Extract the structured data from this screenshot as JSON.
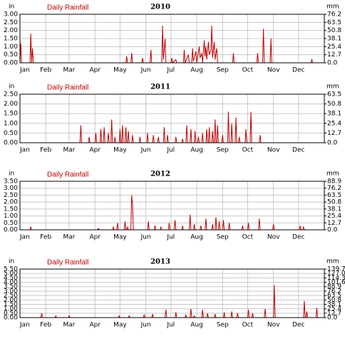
{
  "chart_data": [
    {
      "type": "line",
      "title": "2010",
      "ylabel": "in",
      "y2label": "mm",
      "grid": true,
      "x": [
        1,
        2,
        3,
        13,
        14,
        15,
        16,
        17,
        128,
        129,
        130,
        134,
        135,
        136,
        147,
        148,
        149,
        157,
        158,
        159,
        171,
        172,
        173,
        175,
        176,
        182,
        183,
        184,
        188,
        189,
        197,
        198,
        199,
        203,
        204,
        207,
        208,
        209,
        212,
        213,
        216,
        217,
        219,
        220,
        222,
        223,
        224,
        225,
        227,
        228,
        230,
        231,
        232,
        234,
        235,
        237,
        238,
        256,
        257,
        258,
        285,
        286,
        287,
        292,
        293,
        294,
        301,
        302,
        303,
        350,
        351,
        352,
        365
      ],
      "series": [
        {
          "name": "Daily Rainfall",
          "color": "#c00000",
          "values": [
            0,
            1.2,
            0,
            0,
            1.8,
            0,
            0.9,
            0,
            0,
            0.4,
            0,
            0,
            0.6,
            0,
            0,
            0.3,
            0,
            0,
            0.8,
            0,
            0,
            2.3,
            0.2,
            1.5,
            0,
            0,
            0.3,
            0,
            0.2,
            0,
            0,
            0.8,
            0,
            0.5,
            0,
            0,
            0.9,
            0.1,
            0.7,
            0,
            1.0,
            0.3,
            0.6,
            0,
            1.4,
            0.4,
            1.0,
            0.2,
            1.3,
            0.5,
            0.8,
            2.3,
            0.3,
            1.3,
            0.2,
            0.9,
            0,
            0,
            0.6,
            0,
            0,
            0.6,
            0,
            0,
            2.1,
            0,
            0,
            1.5,
            0,
            0,
            0.2,
            0,
            0
          ]
        }
      ],
      "xlim": [
        1,
        366
      ],
      "xticks": [
        {
          "value": 1,
          "label": "Jan"
        },
        {
          "value": 32,
          "label": "Feb"
        },
        {
          "value": 60,
          "label": "Mar"
        },
        {
          "value": 91,
          "label": "Apr"
        },
        {
          "value": 121,
          "label": "May"
        },
        {
          "value": 152,
          "label": "Jun"
        },
        {
          "value": 182,
          "label": "Jul"
        },
        {
          "value": 213,
          "label": "Aug"
        },
        {
          "value": 244,
          "label": "Sep"
        },
        {
          "value": 274,
          "label": "Oct"
        },
        {
          "value": 305,
          "label": "Nov"
        },
        {
          "value": 335,
          "label": "Dec"
        }
      ],
      "ylim": [
        0,
        3
      ],
      "yticks": [
        {
          "value": 0,
          "label": "0.00"
        },
        {
          "value": 0.5,
          "label": "0.50"
        },
        {
          "value": 1,
          "label": "1.00"
        },
        {
          "value": 1.5,
          "label": "1.50"
        },
        {
          "value": 2,
          "label": "2.00"
        },
        {
          "value": 2.5,
          "label": "2.50"
        },
        {
          "value": 3,
          "label": "3.00"
        }
      ],
      "y2lim": [
        0,
        76.2
      ],
      "y2ticks": [
        {
          "value": 0,
          "label": "0.0"
        },
        12.7,
        25.4,
        38.1,
        50.8,
        63.5,
        76.2
      ]
    },
    {
      "type": "line",
      "title": "2011",
      "ylabel": "in",
      "y2label": "mm",
      "grid": true,
      "x": [
        1,
        73,
        74,
        75,
        83,
        84,
        85,
        91,
        92,
        93,
        97,
        98,
        99,
        101,
        102,
        103,
        106,
        107,
        108,
        110,
        111,
        112,
        114,
        115,
        116,
        120,
        121,
        122,
        123,
        124,
        125,
        127,
        128,
        129,
        130,
        131,
        132,
        135,
        136,
        137,
        144,
        145,
        146,
        153,
        154,
        155,
        160,
        161,
        162,
        166,
        167,
        168,
        173,
        174,
        175,
        177,
        178,
        179,
        187,
        188,
        189,
        195,
        196,
        197,
        200,
        201,
        202,
        205,
        206,
        207,
        210,
        211,
        212,
        214,
        215,
        216,
        219,
        220,
        221,
        224,
        225,
        226,
        227,
        228,
        229,
        231,
        232,
        233,
        234,
        235,
        236,
        237,
        238,
        239,
        243,
        244,
        245,
        250,
        251,
        252,
        254,
        255,
        256,
        259,
        260,
        261,
        263,
        264,
        265,
        271,
        272,
        273,
        277,
        278,
        279,
        288,
        289,
        290,
        365
      ],
      "series": [
        {
          "name": "Daily Rainfall",
          "color": "#c00000",
          "values": [
            0,
            0,
            0.9,
            0,
            0,
            0.3,
            0,
            0,
            0.5,
            0,
            0,
            0.7,
            0,
            0,
            0.8,
            0,
            0,
            0.5,
            0,
            0,
            1.2,
            0,
            0,
            0.3,
            0,
            0,
            0.7,
            0,
            0,
            0.9,
            0,
            0,
            0.8,
            0,
            0,
            0.6,
            0,
            0,
            0.4,
            0,
            0,
            0.3,
            0,
            0,
            0.5,
            0,
            0,
            0.4,
            0,
            0,
            0.3,
            0,
            0,
            0.8,
            0,
            0,
            0.4,
            0,
            0,
            0.3,
            0,
            0,
            0.2,
            0,
            0,
            0.9,
            0,
            0,
            0.7,
            0,
            0,
            0.6,
            0,
            0,
            0.3,
            0,
            0,
            0.5,
            0,
            0,
            0.7,
            0,
            0,
            0.8,
            0,
            0,
            0.6,
            0,
            0,
            1.2,
            0,
            0,
            0.9,
            0,
            0,
            0.4,
            0,
            0,
            1.6,
            0,
            0,
            1.0,
            0,
            0,
            1.3,
            0,
            0,
            0.3,
            0,
            0,
            0.7,
            0,
            0,
            1.6,
            0,
            0,
            0.4,
            0,
            0
          ]
        }
      ],
      "xlim": [
        1,
        366
      ],
      "xticks": [
        {
          "value": 1,
          "label": "Jan"
        },
        {
          "value": 32,
          "label": "Feb"
        },
        {
          "value": 60,
          "label": "Mar"
        },
        {
          "value": 91,
          "label": "Apr"
        },
        {
          "value": 121,
          "label": "May"
        },
        {
          "value": 152,
          "label": "Jun"
        },
        {
          "value": 182,
          "label": "Jul"
        },
        {
          "value": 213,
          "label": "Aug"
        },
        {
          "value": 244,
          "label": "Sep"
        },
        {
          "value": 274,
          "label": "Oct"
        },
        {
          "value": 305,
          "label": "Nov"
        },
        {
          "value": 335,
          "label": "Dec"
        }
      ],
      "ylim": [
        0,
        2.5
      ],
      "yticks": [
        {
          "value": 0,
          "label": "0.00"
        },
        {
          "value": 0.5,
          "label": "0.50"
        },
        {
          "value": 1,
          "label": "1.00"
        },
        {
          "value": 1.5,
          "label": "1.50"
        },
        {
          "value": 2,
          "label": "2.00"
        },
        {
          "value": 2.5,
          "label": "2.50"
        }
      ],
      "y2lim": [
        0,
        63.5
      ],
      "y2ticks": [
        {
          "value": 0,
          "label": "0.0"
        },
        12.7,
        25.4,
        38.1,
        50.8,
        63.5
      ]
    },
    {
      "type": "line",
      "title": "2012",
      "ylabel": "in",
      "y2label": "mm",
      "grid": true,
      "x": [
        1,
        13,
        14,
        15,
        94,
        95,
        96,
        112,
        113,
        114,
        117,
        118,
        119,
        126,
        127,
        128,
        129,
        130,
        131,
        134,
        135,
        136,
        137,
        154,
        155,
        156,
        162,
        163,
        164,
        169,
        170,
        171,
        179,
        180,
        181,
        186,
        187,
        188,
        195,
        196,
        197,
        204,
        205,
        206,
        209,
        210,
        211,
        217,
        218,
        219,
        223,
        224,
        225,
        231,
        232,
        233,
        235,
        236,
        237,
        239,
        240,
        241,
        244,
        245,
        246,
        251,
        252,
        253,
        267,
        268,
        269,
        274,
        275,
        276,
        287,
        288,
        289,
        304,
        305,
        306,
        336,
        337,
        338,
        340,
        341,
        342,
        365
      ],
      "series": [
        {
          "name": "Daily Rainfall",
          "color": "#c00000",
          "values": [
            0,
            0,
            0.2,
            0,
            0,
            0.1,
            0,
            0,
            0.2,
            0,
            0,
            0.5,
            0,
            0,
            0.6,
            0,
            0,
            0.2,
            0,
            0,
            2.5,
            1.8,
            0,
            0,
            0.6,
            0,
            0,
            0.3,
            0,
            0,
            0.2,
            0,
            0,
            0.5,
            0,
            0,
            0.7,
            0,
            0,
            0.3,
            0,
            0,
            1.1,
            0,
            0,
            0.4,
            0,
            0,
            0.3,
            0,
            0,
            0.8,
            0,
            0,
            0.4,
            0,
            0,
            0.9,
            0,
            0,
            0.6,
            0,
            0,
            0.7,
            0,
            0,
            0.5,
            0,
            0,
            0.3,
            0,
            0,
            0.5,
            0,
            0,
            0.8,
            0,
            0,
            0.4,
            0,
            0,
            0.3,
            0,
            0,
            0.2,
            0,
            0
          ]
        }
      ],
      "xlim": [
        1,
        366
      ],
      "xticks": [
        {
          "value": 1,
          "label": "Jan"
        },
        {
          "value": 32,
          "label": "Feb"
        },
        {
          "value": 60,
          "label": "Mar"
        },
        {
          "value": 91,
          "label": "Apr"
        },
        {
          "value": 121,
          "label": "May"
        },
        {
          "value": 152,
          "label": "Jun"
        },
        {
          "value": 182,
          "label": "Jul"
        },
        {
          "value": 213,
          "label": "Aug"
        },
        {
          "value": 244,
          "label": "Sep"
        },
        {
          "value": 274,
          "label": "Oct"
        },
        {
          "value": 305,
          "label": "Nov"
        },
        {
          "value": 335,
          "label": "Dec"
        }
      ],
      "ylim": [
        0,
        3.5
      ],
      "yticks": [
        {
          "value": 0,
          "label": "0.00"
        },
        {
          "value": 0.5,
          "label": "0.50"
        },
        {
          "value": 1,
          "label": "1.00"
        },
        {
          "value": 1.5,
          "label": "1.50"
        },
        {
          "value": 2,
          "label": "2.00"
        },
        {
          "value": 2.5,
          "label": "2.50"
        },
        {
          "value": 3,
          "label": "3.00"
        },
        {
          "value": 3.5,
          "label": "3.50"
        }
      ],
      "y2lim": [
        0,
        88.9
      ],
      "y2ticks": [
        {
          "value": 0,
          "label": "0.0"
        },
        12.7,
        25.4,
        38.1,
        50.8,
        63.5,
        76.2,
        88.9
      ]
    },
    {
      "type": "line",
      "title": "2013",
      "ylabel": "in",
      "y2label": "mm",
      "grid": true,
      "x": [
        1,
        26,
        27,
        28,
        43,
        44,
        45,
        59,
        60,
        61,
        119,
        120,
        121,
        131,
        132,
        133,
        149,
        150,
        151,
        159,
        160,
        161,
        175,
        176,
        177,
        187,
        188,
        189,
        199,
        200,
        201,
        205,
        206,
        207,
        209,
        210,
        211,
        219,
        220,
        221,
        225,
        226,
        227,
        234,
        235,
        236,
        245,
        246,
        247,
        254,
        255,
        256,
        261,
        262,
        263,
        274,
        275,
        276,
        279,
        280,
        281,
        294,
        295,
        296,
        305,
        306,
        307,
        341,
        342,
        343,
        344,
        345,
        346,
        356,
        357,
        358,
        365
      ],
      "series": [
        {
          "name": "Daily Rainfall",
          "color": "#c00000",
          "values": [
            0,
            0,
            0.5,
            0,
            0,
            0.2,
            0,
            0,
            0.2,
            0,
            0,
            0.2,
            0,
            0,
            0.2,
            0,
            0,
            0.3,
            0,
            0,
            0.4,
            0,
            0,
            0.9,
            0,
            0,
            0.6,
            0,
            0,
            0.3,
            0,
            0,
            1.0,
            0,
            0,
            0.2,
            0,
            0,
            0.9,
            0,
            0,
            0.5,
            0,
            0,
            0.4,
            0,
            0,
            0.6,
            0,
            0,
            0.7,
            0,
            0,
            0.5,
            0,
            0,
            0.9,
            0,
            0,
            0.5,
            0,
            0,
            1.0,
            0,
            0,
            3.7,
            0,
            0,
            1.9,
            0,
            0,
            0.7,
            0,
            0,
            1.1,
            0,
            0
          ]
        }
      ],
      "xlim": [
        1,
        366
      ],
      "xticks": [
        {
          "value": 1,
          "label": "Jan"
        },
        {
          "value": 32,
          "label": "Feb"
        },
        {
          "value": 60,
          "label": "Mar"
        },
        {
          "value": 91,
          "label": "Apr"
        },
        {
          "value": 121,
          "label": "May"
        },
        {
          "value": 152,
          "label": "Jun"
        },
        {
          "value": 182,
          "label": "Jul"
        },
        {
          "value": 213,
          "label": "Aug"
        },
        {
          "value": 244,
          "label": "Sep"
        },
        {
          "value": 274,
          "label": "Oct"
        },
        {
          "value": 305,
          "label": "Nov"
        },
        {
          "value": 335,
          "label": "Dec"
        }
      ],
      "ylim": [
        0,
        5.5
      ],
      "yticks": [
        {
          "value": 0,
          "label": "0.00"
        },
        {
          "value": 0.5,
          "label": "0.50"
        },
        {
          "value": 1,
          "label": "1.00"
        },
        {
          "value": 1.5,
          "label": "1.50"
        },
        {
          "value": 2,
          "label": "2.00"
        },
        {
          "value": 2.5,
          "label": "2.50"
        },
        {
          "value": 3,
          "label": "3.00"
        },
        {
          "value": 3.5,
          "label": "3.50"
        },
        {
          "value": 4,
          "label": "4.00"
        },
        {
          "value": 4.5,
          "label": "4.50"
        },
        {
          "value": 5,
          "label": "5.00"
        },
        {
          "value": 5.5,
          "label": "5.50"
        }
      ],
      "y2lim": [
        0,
        139.7
      ],
      "y2ticks": [
        {
          "value": 0,
          "label": "0.0"
        },
        12.7,
        25.4,
        38.1,
        50.8,
        63.5,
        76.2,
        88.9,
        101.6,
        114.3,
        {
          "value": 127,
          "label": "127.0"
        },
        139.7
      ]
    }
  ]
}
